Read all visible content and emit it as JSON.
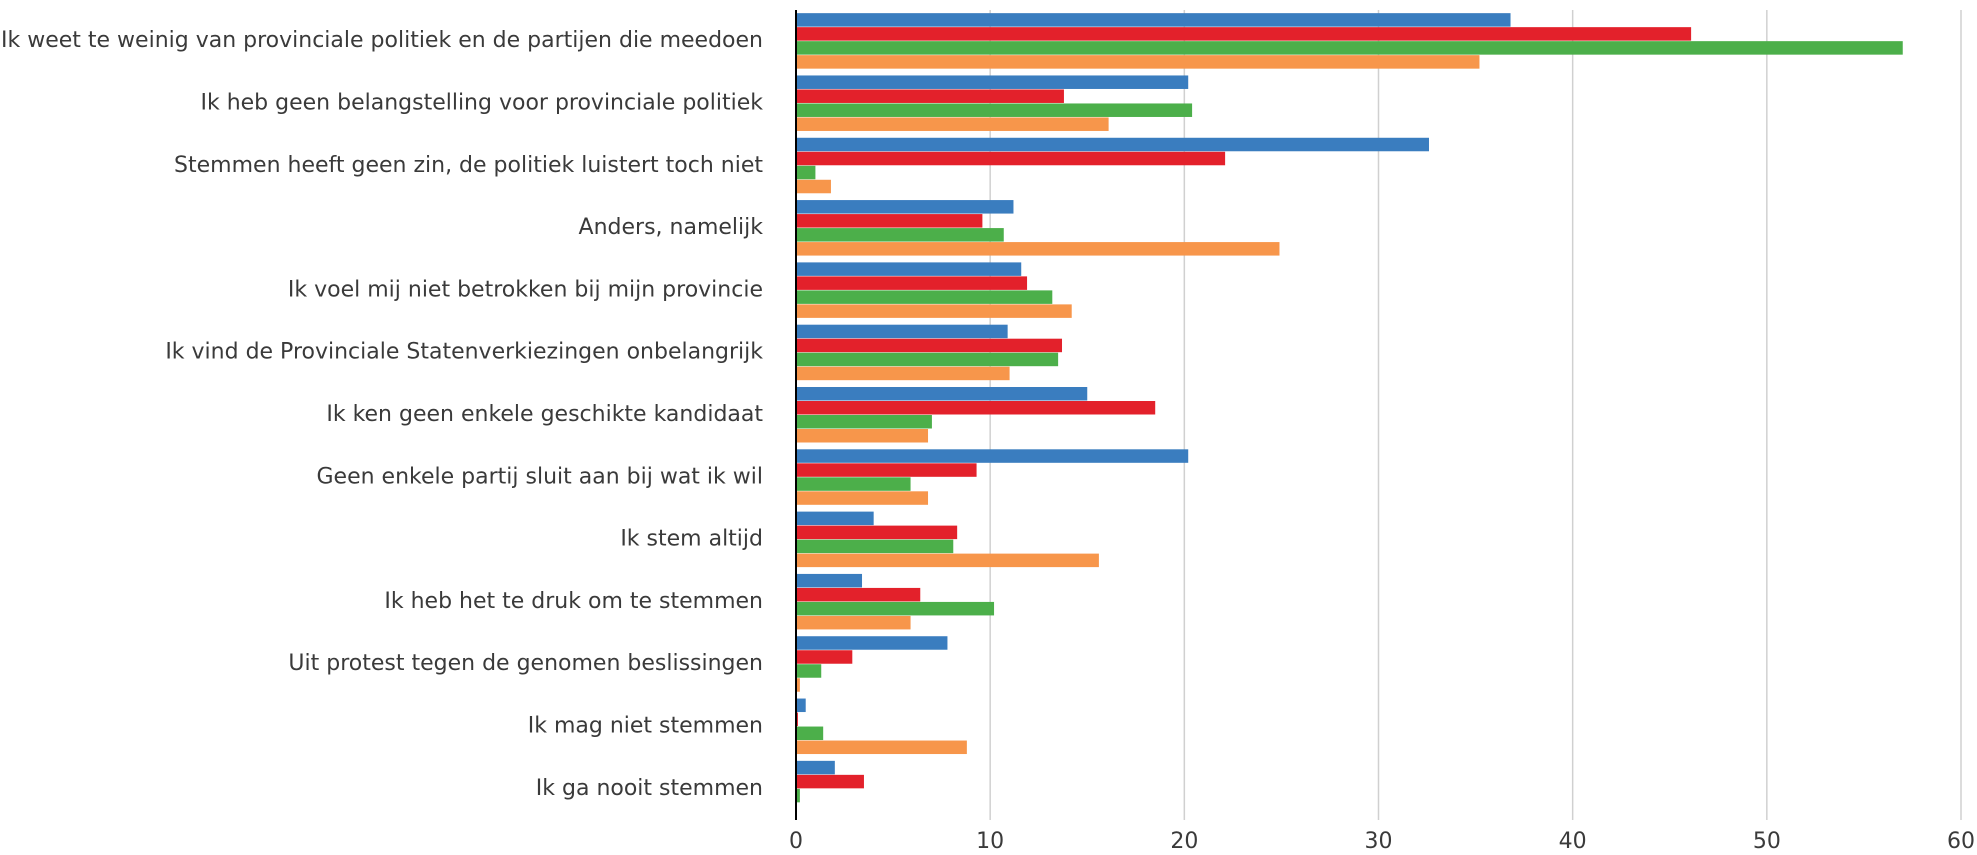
{
  "chart_data": {
    "type": "bar",
    "orientation": "horizontal",
    "categories": [
      "Ik weet te weinig van provinciale politiek en de partijen die meedoen",
      "Ik heb geen belangstelling voor provinciale politiek",
      "Stemmen heeft geen zin, de politiek luistert toch niet",
      "Anders, namelijk",
      "Ik voel mij niet betrokken bij mijn provincie",
      "Ik vind de Provinciale Statenverkiezingen onbelangrijk",
      "Ik ken geen enkele geschikte kandidaat",
      "Geen enkele partij sluit aan bij wat ik wil",
      "Ik stem altijd",
      "Ik heb het te druk om te stemmen",
      "Uit protest tegen de genomen beslissingen",
      "Ik mag niet stemmen",
      "Ik ga nooit stemmen"
    ],
    "series": [
      {
        "color": "#3a7dbf",
        "values": [
          36.8,
          20.2,
          32.6,
          11.2,
          11.6,
          10.9,
          15.0,
          20.2,
          4.0,
          3.4,
          7.8,
          0.5,
          2.0
        ]
      },
      {
        "color": "#e3212b",
        "values": [
          46.1,
          13.8,
          22.1,
          9.6,
          11.9,
          13.7,
          18.5,
          9.3,
          8.3,
          6.4,
          2.9,
          0.1,
          3.5
        ]
      },
      {
        "color": "#4caf4a",
        "values": [
          57.0,
          20.4,
          1.0,
          10.7,
          13.2,
          13.5,
          7.0,
          5.9,
          8.1,
          10.2,
          1.3,
          1.4,
          0.2
        ]
      },
      {
        "color": "#f7964b",
        "values": [
          35.2,
          16.1,
          1.8,
          24.9,
          14.2,
          11.0,
          6.8,
          6.8,
          15.6,
          5.9,
          0.2,
          8.8,
          0
        ]
      }
    ],
    "xlim": [
      0,
      60
    ],
    "xticks": [
      0,
      10,
      20,
      30,
      40,
      50,
      60
    ],
    "grid": true
  }
}
